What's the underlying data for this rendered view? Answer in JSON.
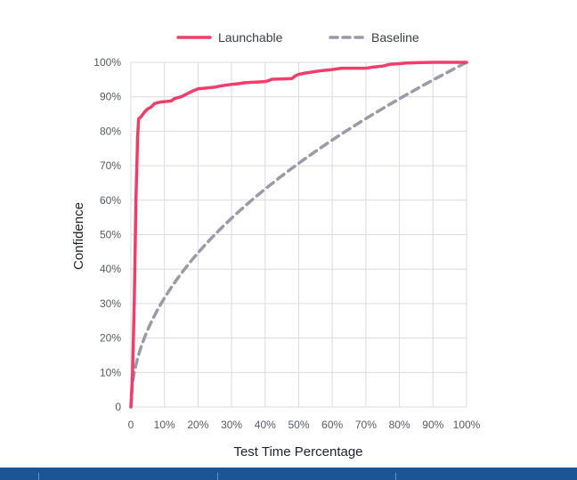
{
  "colors": {
    "launchable": "#f03e6b",
    "baseline": "#9a9aa8",
    "grid": "#d9dce6",
    "bottom_bar": "#1b5596"
  },
  "chart_data": {
    "type": "line",
    "title": "",
    "xlabel": "Test Time Percentage",
    "ylabel": "Confidence",
    "xlim": [
      0,
      100
    ],
    "ylim": [
      0,
      100
    ],
    "x_ticks": [
      0,
      10,
      20,
      30,
      40,
      50,
      60,
      70,
      80,
      90,
      100
    ],
    "x_tick_labels": [
      "0",
      "10%",
      "20%",
      "30%",
      "40%",
      "50%",
      "60%",
      "70%",
      "80%",
      "90%",
      "100%"
    ],
    "y_ticks": [
      0,
      10,
      20,
      30,
      40,
      50,
      60,
      70,
      80,
      90,
      100
    ],
    "y_tick_labels": [
      "0",
      "10%",
      "20%",
      "30%",
      "40%",
      "50%",
      "60%",
      "70%",
      "80%",
      "90%",
      "100%"
    ],
    "grid": true,
    "legend_position": "top-center",
    "series": [
      {
        "name": "Launchable",
        "style": "solid",
        "color": "#f03e6b",
        "x": [
          0,
          0.5,
          1,
          1.5,
          2,
          2.3,
          3,
          4,
          5,
          6,
          7,
          8,
          9,
          10,
          12,
          13,
          15,
          17,
          18,
          20,
          22,
          25,
          27,
          30,
          32,
          34,
          40,
          41,
          42,
          45,
          48,
          49,
          50,
          52,
          54,
          56,
          58,
          60,
          62,
          63,
          65,
          70,
          72,
          75,
          77,
          78,
          80,
          82,
          85,
          90,
          95,
          100
        ],
        "y": [
          0,
          10,
          30,
          60,
          78,
          83.6,
          84.2,
          85.5,
          86.5,
          87,
          88,
          88.3,
          88.5,
          88.6,
          88.8,
          89.5,
          90,
          91,
          91.5,
          92.3,
          92.5,
          92.8,
          93.2,
          93.6,
          93.8,
          94.1,
          94.4,
          94.7,
          95.1,
          95.2,
          95.3,
          96.1,
          96.5,
          96.9,
          97.2,
          97.5,
          97.7,
          97.9,
          98.2,
          98.3,
          98.3,
          98.3,
          98.6,
          98.9,
          99.4,
          99.5,
          99.6,
          99.8,
          99.9,
          100,
          100,
          100
        ]
      },
      {
        "name": "Baseline",
        "style": "dashed",
        "color": "#9a9aa8",
        "function": "sqrt",
        "x": [
          0,
          1,
          2,
          3,
          4,
          5,
          6,
          8,
          10,
          12,
          14,
          16,
          18,
          20,
          22,
          25,
          28,
          30,
          33,
          36,
          40,
          44,
          48,
          52,
          56,
          60,
          64,
          68,
          72,
          76,
          80,
          84,
          88,
          92,
          96,
          100
        ],
        "y": [
          0,
          10,
          14.1,
          17.3,
          20,
          22.4,
          24.5,
          28.3,
          31.6,
          34.6,
          37.4,
          40,
          42.4,
          44.7,
          46.9,
          50,
          52.9,
          54.8,
          57.4,
          60,
          63.2,
          66.3,
          69.3,
          72.1,
          74.8,
          77.5,
          80,
          82.5,
          84.9,
          87.2,
          89.4,
          91.7,
          93.8,
          95.9,
          98,
          100
        ]
      }
    ]
  }
}
